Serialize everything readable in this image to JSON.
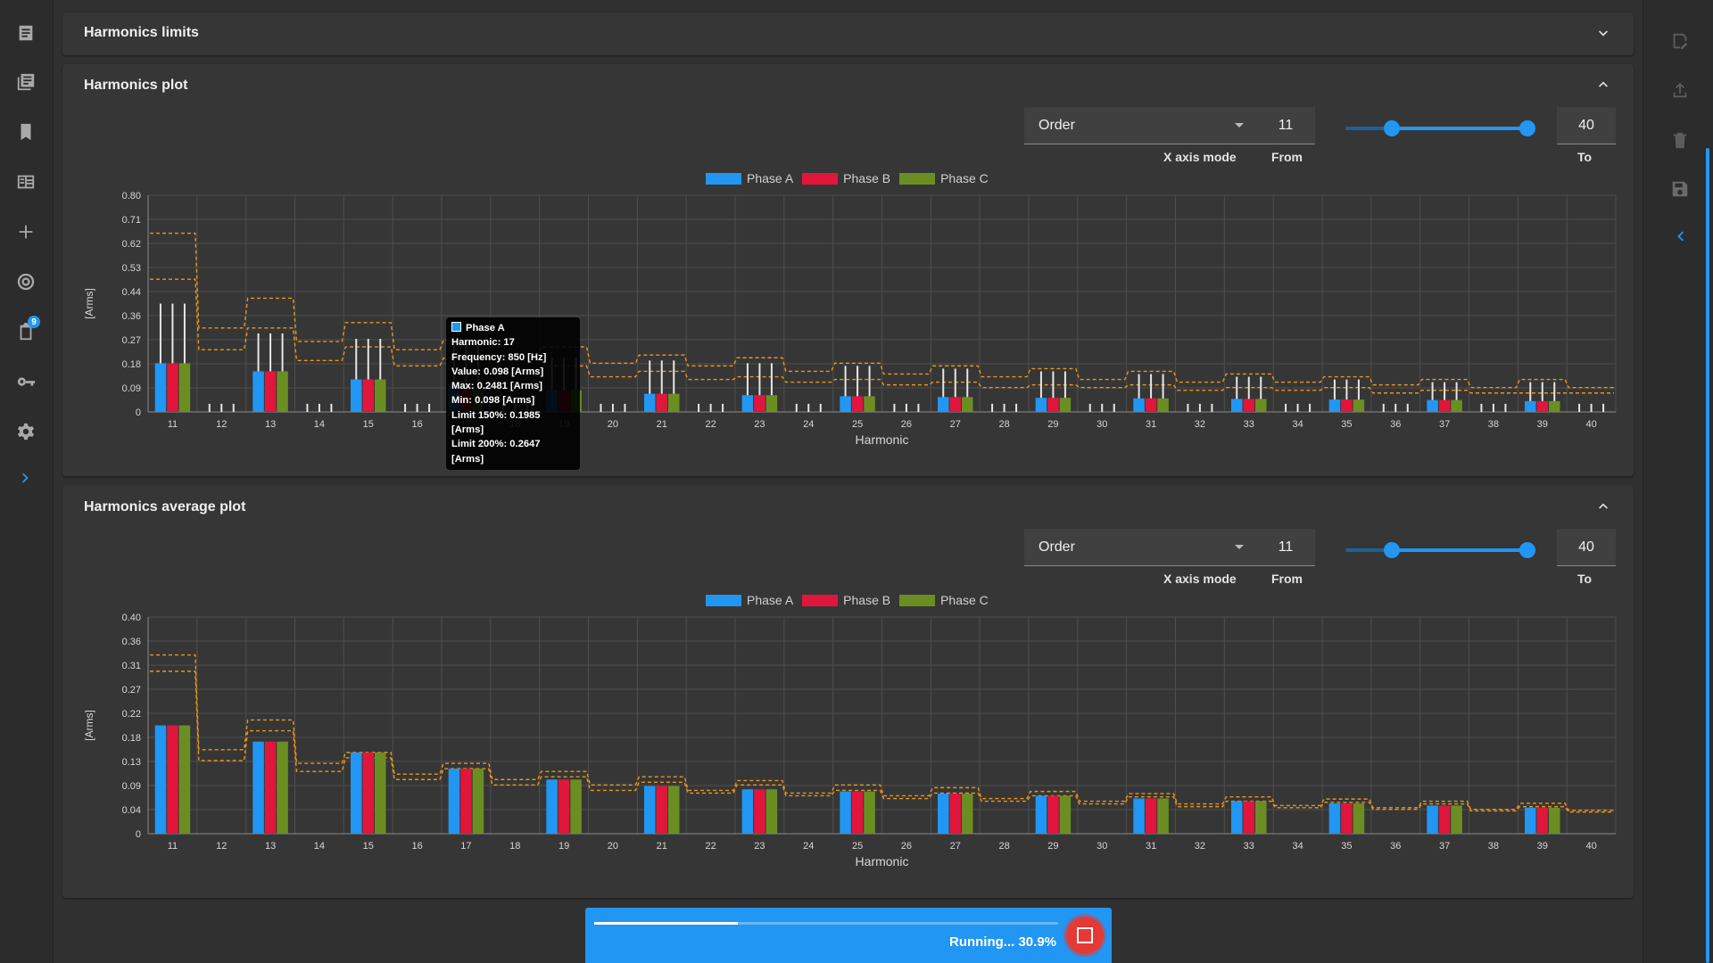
{
  "nav": {
    "items": [
      {
        "name": "document-icon"
      },
      {
        "name": "library-icon"
      },
      {
        "name": "bookmark-icon"
      },
      {
        "name": "table-icon"
      },
      {
        "name": "add-icon"
      },
      {
        "name": "target-icon"
      },
      {
        "name": "clipboard-icon",
        "badge": "9"
      },
      {
        "name": "key-icon"
      },
      {
        "name": "settings-icon"
      },
      {
        "name": "chevron-right-icon"
      }
    ]
  },
  "right_rail": {
    "items": [
      "save-document-icon",
      "upload-icon",
      "delete-icon",
      "save-icon",
      "chevron-left-icon"
    ],
    "accent": "#2196f3"
  },
  "panels": {
    "limits": {
      "title": "Harmonics limits"
    },
    "plot": {
      "title": "Harmonics plot"
    },
    "average": {
      "title": "Harmonics average plot"
    }
  },
  "controls": {
    "xaxis_value": "Order",
    "xaxis_caption": "X axis mode",
    "from_value": "11",
    "from_caption": "From",
    "to_value": "40",
    "to_caption": "To"
  },
  "colors": {
    "phase_a": "#2196f3",
    "phase_b": "#e0163d",
    "phase_c": "#6b8e23",
    "limit": "#e8951a"
  },
  "tooltip": {
    "series": "Phase A",
    "harmonic": "Harmonic: 17",
    "frequency": "Frequency: 850 [Hz]",
    "value": "Value: 0.098 [Arms]",
    "max": "Max: 0.2481 [Arms]",
    "min": "Min: 0.098 [Arms]",
    "limit150": "Limit 150%: 0.1985 [Arms]",
    "limit200": "Limit 200%: 0.2647 [Arms]"
  },
  "progress": {
    "label": "Running... 30.9%",
    "fraction": 0.309
  },
  "chart_data": [
    {
      "type": "bar",
      "title": "Harmonics plot",
      "xlabel": "Harmonic",
      "ylabel": "[Arms]",
      "ylim": [
        0,
        0.8
      ],
      "yticks": [
        "0",
        "0.09",
        "0.18",
        "0.27",
        "0.36",
        "0.44",
        "0.53",
        "0.62",
        "0.71",
        "0.80"
      ],
      "categories": [
        "11",
        "12",
        "13",
        "14",
        "15",
        "16",
        "17",
        "18",
        "19",
        "20",
        "21",
        "22",
        "23",
        "24",
        "25",
        "26",
        "27",
        "28",
        "29",
        "30",
        "31",
        "32",
        "33",
        "34",
        "35",
        "36",
        "37",
        "38",
        "39",
        "40"
      ],
      "legend": [
        "Phase A",
        "Phase B",
        "Phase C"
      ],
      "grid": true,
      "series": [
        {
          "name": "Phase A",
          "values": [
            0.18,
            0,
            0.15,
            0,
            0.12,
            0,
            0.098,
            0,
            0.08,
            0,
            0.067,
            0,
            0.062,
            0,
            0.058,
            0,
            0.055,
            0,
            0.052,
            0,
            0.05,
            0,
            0.048,
            0,
            0.046,
            0,
            0.044,
            0,
            0.04,
            0
          ]
        },
        {
          "name": "Phase B",
          "values": [
            0.18,
            0,
            0.15,
            0,
            0.12,
            0,
            0.098,
            0,
            0.08,
            0,
            0.067,
            0,
            0.062,
            0,
            0.058,
            0,
            0.055,
            0,
            0.052,
            0,
            0.05,
            0,
            0.048,
            0,
            0.046,
            0,
            0.044,
            0,
            0.04,
            0
          ]
        },
        {
          "name": "Phase C",
          "values": [
            0.18,
            0,
            0.15,
            0,
            0.12,
            0,
            0.098,
            0,
            0.08,
            0,
            0.067,
            0,
            0.062,
            0,
            0.058,
            0,
            0.055,
            0,
            0.052,
            0,
            0.05,
            0,
            0.048,
            0,
            0.046,
            0,
            0.044,
            0,
            0.04,
            0
          ]
        }
      ],
      "max_values": [
        0.4,
        0.03,
        0.29,
        0.03,
        0.27,
        0.03,
        0.2481,
        0.03,
        0.2,
        0.03,
        0.19,
        0.03,
        0.18,
        0.03,
        0.17,
        0.03,
        0.16,
        0.03,
        0.15,
        0.03,
        0.14,
        0.03,
        0.13,
        0.03,
        0.12,
        0.03,
        0.11,
        0.03,
        0.11,
        0.03
      ],
      "limit_150": [
        0.49,
        0.23,
        0.31,
        0.19,
        0.24,
        0.17,
        0.1985,
        0.14,
        0.17,
        0.13,
        0.15,
        0.12,
        0.13,
        0.11,
        0.12,
        0.1,
        0.11,
        0.09,
        0.1,
        0.09,
        0.1,
        0.08,
        0.09,
        0.08,
        0.09,
        0.07,
        0.08,
        0.07,
        0.07,
        0.07
      ],
      "limit_200": [
        0.66,
        0.31,
        0.42,
        0.26,
        0.33,
        0.23,
        0.2647,
        0.19,
        0.24,
        0.18,
        0.21,
        0.17,
        0.2,
        0.15,
        0.18,
        0.14,
        0.17,
        0.13,
        0.16,
        0.12,
        0.15,
        0.11,
        0.14,
        0.11,
        0.13,
        0.1,
        0.12,
        0.09,
        0.12,
        0.09
      ]
    },
    {
      "type": "bar",
      "title": "Harmonics average plot",
      "xlabel": "Harmonic",
      "ylabel": "[Arms]",
      "ylim": [
        0,
        0.4
      ],
      "yticks": [
        "0",
        "0.04",
        "0.09",
        "0.13",
        "0.18",
        "0.22",
        "0.27",
        "0.31",
        "0.36",
        "0.40"
      ],
      "categories": [
        "11",
        "12",
        "13",
        "14",
        "15",
        "16",
        "17",
        "18",
        "19",
        "20",
        "21",
        "22",
        "23",
        "24",
        "25",
        "26",
        "27",
        "28",
        "29",
        "30",
        "31",
        "32",
        "33",
        "34",
        "35",
        "36",
        "37",
        "38",
        "39",
        "40"
      ],
      "legend": [
        "Phase A",
        "Phase B",
        "Phase C"
      ],
      "grid": true,
      "series": [
        {
          "name": "Phase A",
          "values": [
            0.2,
            0,
            0.17,
            0,
            0.15,
            0,
            0.12,
            0,
            0.1,
            0,
            0.088,
            0,
            0.082,
            0,
            0.078,
            0,
            0.074,
            0,
            0.07,
            0,
            0.065,
            0,
            0.06,
            0,
            0.056,
            0,
            0.052,
            0,
            0.048,
            0
          ]
        },
        {
          "name": "Phase B",
          "values": [
            0.2,
            0,
            0.17,
            0,
            0.15,
            0,
            0.12,
            0,
            0.1,
            0,
            0.088,
            0,
            0.082,
            0,
            0.078,
            0,
            0.074,
            0,
            0.07,
            0,
            0.065,
            0,
            0.06,
            0,
            0.056,
            0,
            0.052,
            0,
            0.048,
            0
          ]
        },
        {
          "name": "Phase C",
          "values": [
            0.2,
            0,
            0.17,
            0,
            0.15,
            0,
            0.12,
            0,
            0.1,
            0,
            0.088,
            0,
            0.082,
            0,
            0.078,
            0,
            0.074,
            0,
            0.07,
            0,
            0.065,
            0,
            0.06,
            0,
            0.056,
            0,
            0.052,
            0,
            0.048,
            0
          ]
        }
      ],
      "limit_150": [
        0.3,
        0.135,
        0.19,
        0.115,
        0.14,
        0.1,
        0.12,
        0.09,
        0.105,
        0.08,
        0.095,
        0.075,
        0.09,
        0.07,
        0.08,
        0.065,
        0.075,
        0.06,
        0.07,
        0.055,
        0.068,
        0.05,
        0.06,
        0.048,
        0.058,
        0.045,
        0.055,
        0.042,
        0.05,
        0.04
      ],
      "limit_200": [
        0.33,
        0.155,
        0.21,
        0.13,
        0.15,
        0.11,
        0.13,
        0.1,
        0.115,
        0.09,
        0.105,
        0.08,
        0.098,
        0.075,
        0.09,
        0.07,
        0.085,
        0.065,
        0.078,
        0.06,
        0.074,
        0.055,
        0.068,
        0.052,
        0.064,
        0.048,
        0.06,
        0.045,
        0.056,
        0.043
      ]
    }
  ]
}
